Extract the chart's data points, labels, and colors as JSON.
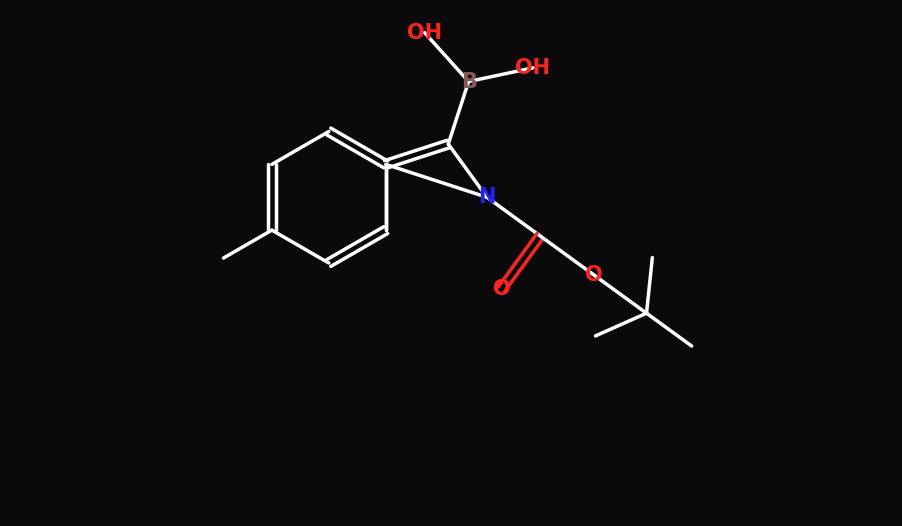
{
  "background_color": "#0a0a0a",
  "atom_colors": {
    "C": "#ffffff",
    "N": "#2222ff",
    "O": "#ff2222",
    "B": "#8B5A5A",
    "H": "#ffffff"
  },
  "bond_color": "#ffffff",
  "bond_width": 2.5,
  "title": "",
  "figsize": [
    9.03,
    5.26
  ],
  "dpi": 100
}
